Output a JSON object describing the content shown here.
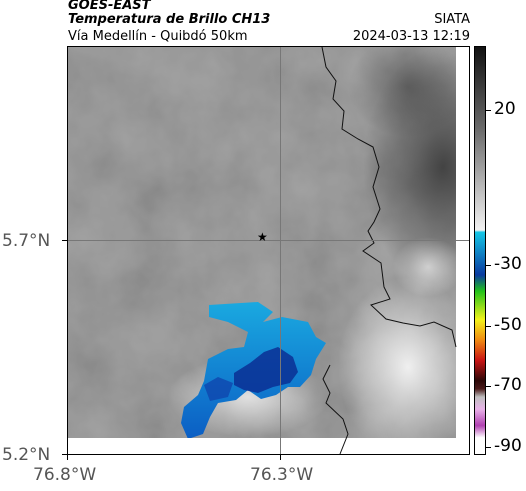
{
  "header": {
    "line1": "GOES-EAST",
    "line2": "Temperatura de Brillo CH13",
    "line3": "Vía Medellín - Quibdó 50km",
    "right_label": "SIATA",
    "timestamp": "2024-03-13 12:19"
  },
  "axes": {
    "lat_labels": [
      "5.7°N",
      "5.2°N"
    ],
    "lon_labels": [
      "76.8°W",
      "76.3°W"
    ]
  },
  "marker": {
    "icon": "star-icon"
  },
  "colorbar": {
    "labels": [
      "20",
      "-30",
      "-50",
      "-70",
      "-90"
    ],
    "colors": {
      "warm_top": "#111111",
      "warm_bottom": "#f2f2f2",
      "cyan": "#15c6e6",
      "blue": "#0a3aa0",
      "green": "#22c21a",
      "yellow": "#f2f21a",
      "orange": "#f08a12",
      "red": "#c81414",
      "dark": "#2b0707",
      "magenta": "#b040b0"
    }
  }
}
